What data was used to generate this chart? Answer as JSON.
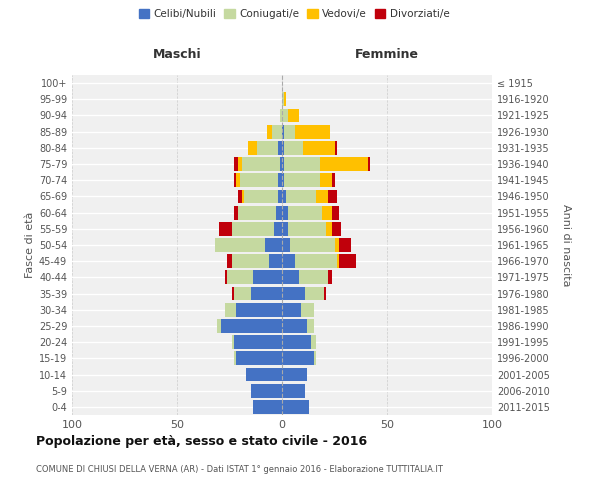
{
  "age_groups": [
    "0-4",
    "5-9",
    "10-14",
    "15-19",
    "20-24",
    "25-29",
    "30-34",
    "35-39",
    "40-44",
    "45-49",
    "50-54",
    "55-59",
    "60-64",
    "65-69",
    "70-74",
    "75-79",
    "80-84",
    "85-89",
    "90-94",
    "95-99",
    "100+"
  ],
  "birth_years": [
    "2011-2015",
    "2006-2010",
    "2001-2005",
    "1996-2000",
    "1991-1995",
    "1986-1990",
    "1981-1985",
    "1976-1980",
    "1971-1975",
    "1966-1970",
    "1961-1965",
    "1956-1960",
    "1951-1955",
    "1946-1950",
    "1941-1945",
    "1936-1940",
    "1931-1935",
    "1926-1930",
    "1921-1925",
    "1916-1920",
    "≤ 1915"
  ],
  "maschi": {
    "celibi": [
      14,
      15,
      17,
      22,
      23,
      29,
      22,
      15,
      14,
      6,
      8,
      4,
      3,
      2,
      2,
      1,
      2,
      0,
      0,
      0,
      0
    ],
    "coniugati": [
      0,
      0,
      0,
      1,
      1,
      2,
      5,
      8,
      12,
      18,
      24,
      20,
      18,
      16,
      18,
      18,
      10,
      5,
      1,
      0,
      0
    ],
    "vedovi": [
      0,
      0,
      0,
      0,
      0,
      0,
      0,
      0,
      0,
      0,
      0,
      0,
      0,
      1,
      2,
      2,
      4,
      2,
      0,
      0,
      0
    ],
    "divorziati": [
      0,
      0,
      0,
      0,
      0,
      0,
      0,
      1,
      1,
      2,
      0,
      6,
      2,
      2,
      1,
      2,
      0,
      0,
      0,
      0,
      0
    ]
  },
  "femmine": {
    "nubili": [
      13,
      11,
      12,
      15,
      14,
      12,
      9,
      11,
      8,
      6,
      4,
      3,
      3,
      2,
      1,
      1,
      1,
      1,
      0,
      0,
      0
    ],
    "coniugate": [
      0,
      0,
      0,
      1,
      2,
      3,
      6,
      9,
      14,
      20,
      21,
      18,
      16,
      14,
      17,
      17,
      9,
      5,
      3,
      1,
      0
    ],
    "vedove": [
      0,
      0,
      0,
      0,
      0,
      0,
      0,
      0,
      0,
      1,
      2,
      3,
      5,
      6,
      6,
      23,
      15,
      17,
      5,
      1,
      0
    ],
    "divorziate": [
      0,
      0,
      0,
      0,
      0,
      0,
      0,
      1,
      2,
      8,
      6,
      4,
      3,
      4,
      1,
      1,
      1,
      0,
      0,
      0,
      0
    ]
  },
  "colors": {
    "celibi": "#4472c4",
    "coniugati": "#c5d9a0",
    "vedovi": "#ffc000",
    "divorziati": "#c0000b"
  },
  "xlim": 100,
  "title": "Popolazione per età, sesso e stato civile - 2016",
  "subtitle": "COMUNE DI CHIUSI DELLA VERNA (AR) - Dati ISTAT 1° gennaio 2016 - Elaborazione TUTTITALIA.IT",
  "ylabel_left": "Fasce di età",
  "ylabel_right": "Anni di nascita",
  "xlabel_maschi": "Maschi",
  "xlabel_femmine": "Femmine",
  "legend_labels": [
    "Celibi/Nubili",
    "Coniugati/e",
    "Vedovi/e",
    "Divorziati/e"
  ],
  "bg_color": "#f0f0f0",
  "bar_height": 0.85
}
